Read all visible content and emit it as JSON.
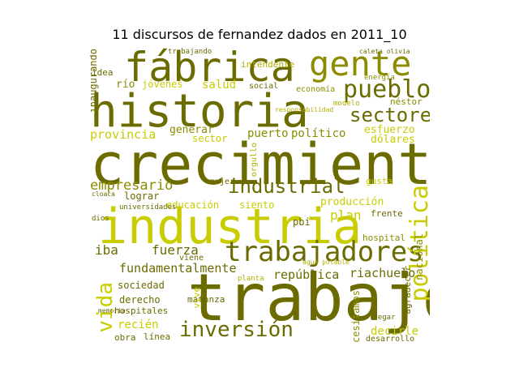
{
  "title": "11 discursos de fernandez dados en 2011_10",
  "words": {
    "crecimiento": "crecimiento",
    "trabajo": "trabajo",
    "industria": "industria",
    "historia": "historia",
    "fabrica": "fábrica",
    "gente": "gente",
    "trabajadores": "trabajadores",
    "pueblo": "pueblo",
    "sectores": "sectores",
    "industrial": "industrial",
    "politica": "política",
    "inversion": "inversión",
    "vida": "vida",
    "empresario": "empresario",
    "fundamentalmente": "fundamentalmente",
    "fuerza": "fuerza",
    "republica": "república",
    "riachuelo": "riachuelo",
    "provincia": "provincia",
    "generar": "generar",
    "puerto": "puerto",
    "politico": "político",
    "esfuerzo": "esfuerzo",
    "dolares": "dólares",
    "salud": "salud",
    "rio": "río",
    "jovenes": "jóvenes",
    "idea": "idea",
    "social": "social",
    "economia": "economía",
    "nestor": "néstor",
    "intendente": "intendente",
    "inaugurando": "inaugurando",
    "sector": "sector",
    "educacion": "educación",
    "siento": "siento",
    "produccion": "producción",
    "plan": "plan",
    "frente": "frente",
    "hospital": "hospital",
    "lograr": "lograr",
    "universidades": "universidades",
    "mujer": "mujer",
    "gusta": "gusta",
    "necesitamos": "necesitamos",
    "nacional": "nacional",
    "agradecer": "agradecer",
    "iba": "iba",
    "sociedad": "sociedad",
    "derecho": "derecho",
    "hospitales": "hospitales",
    "matanza": "matanza",
    "viene": "viene",
    "vive": "vive",
    "recien": "recién",
    "obra": "obra",
    "linea": "línea",
    "decirle": "decirle",
    "desarrollo": "desarrollo",
    "pbi": "pbi",
    "orgullo": "orgullo",
    "modelo": "modelo",
    "energia": "energía",
    "trabajando": "trabajando",
    "planta": "planta",
    "memoria": "memoria",
    "dios": "dios",
    "cloaca": "cloaca",
    "agua_potable": "agua potable",
    "responsabilidad": "responsabilidad",
    "caleta_olivia": "caleta olivia",
    "llegar": "llegar"
  }
}
